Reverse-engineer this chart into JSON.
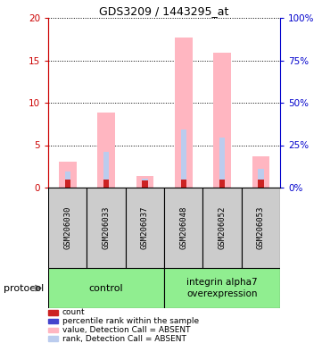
{
  "title": "GDS3209 / 1443295_at",
  "samples": [
    "GSM206030",
    "GSM206033",
    "GSM206037",
    "GSM206048",
    "GSM206052",
    "GSM206053"
  ],
  "pink_bar_heights": [
    3.1,
    8.8,
    1.4,
    17.7,
    15.9,
    3.7
  ],
  "blue_segment_tops": [
    1.85,
    4.2,
    1.1,
    6.8,
    5.9,
    2.2
  ],
  "red_segment_heights": [
    1.0,
    1.0,
    0.8,
    1.0,
    0.9,
    1.0
  ],
  "ylim_left": [
    0,
    20
  ],
  "ylim_right": [
    0,
    100
  ],
  "yticks_left": [
    0,
    5,
    10,
    15,
    20
  ],
  "yticks_right": [
    0,
    25,
    50,
    75,
    100
  ],
  "ytick_labels_left": [
    "0",
    "5",
    "10",
    "15",
    "20"
  ],
  "ytick_labels_right": [
    "0%",
    "25%",
    "50%",
    "75%",
    "100%"
  ],
  "left_axis_color": "#CC0000",
  "right_axis_color": "#0000CC",
  "bar_width": 0.45,
  "narrow_bar_width": 0.15,
  "pink_color": "#FFB6C1",
  "blue_color": "#8888CC",
  "red_color": "#CC2222",
  "rank_absent_color": "#BBCCEE",
  "sample_box_color": "#CCCCCC",
  "group1_label": "control",
  "group2_label": "integrin alpha7\noverexpression",
  "group_color": "#90EE90",
  "protocol_label": "protocol",
  "legend_labels": [
    "count",
    "percentile rank within the sample",
    "value, Detection Call = ABSENT",
    "rank, Detection Call = ABSENT"
  ],
  "legend_colors": [
    "#CC2222",
    "#4444CC",
    "#FFB6C1",
    "#BBCCEE"
  ]
}
